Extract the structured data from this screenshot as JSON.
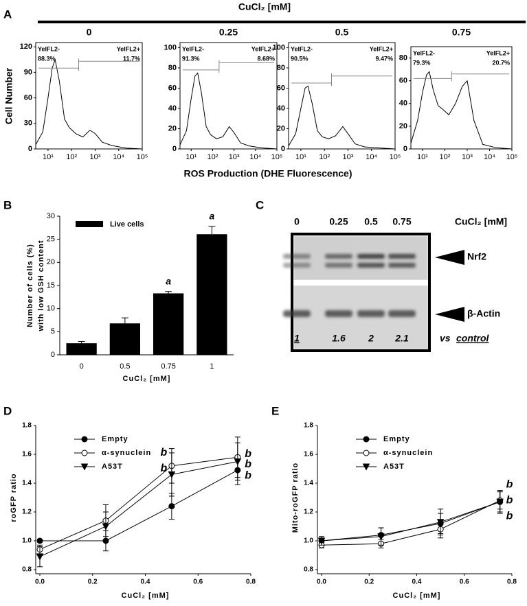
{
  "panel_a": {
    "label": "A",
    "title": "CuCl₂ [mM]",
    "y_label": "Cell Number",
    "x_label": "ROS Production (DHE Fluorescence)",
    "histograms": [
      {
        "type": "line",
        "label": "0",
        "log_x": true,
        "xlim": [
          3,
          100000
        ],
        "xticks": [
          {
            "value": 10,
            "label": "10¹"
          },
          {
            "value": 100,
            "label": "10²"
          },
          {
            "value": 1000,
            "label": "10³"
          },
          {
            "value": 10000,
            "label": "10⁴"
          },
          {
            "value": 100000,
            "label": "10⁵"
          }
        ],
        "ylim": [
          0,
          125
        ],
        "yticks": [
          0,
          30,
          60,
          90,
          120
        ],
        "x": [
          3,
          6,
          10,
          15,
          20,
          30,
          50,
          80,
          150,
          300,
          600,
          1000,
          2000,
          5000,
          20000,
          100000
        ],
        "values": [
          5,
          20,
          60,
          95,
          105,
          80,
          35,
          25,
          18,
          14,
          22,
          18,
          8,
          4,
          1,
          0
        ],
        "gate_x": 200,
        "gate_y": [
          95,
          103
        ],
        "gate_labels": [
          "YelFL2-",
          "88.3%",
          "YelFL2+",
          "11.7%"
        ]
      },
      {
        "type": "line",
        "label": "0.25",
        "log_x": true,
        "xlim": [
          3,
          100000
        ],
        "xticks": [
          {
            "value": 10,
            "label": "10¹"
          },
          {
            "value": 100,
            "label": "10²"
          },
          {
            "value": 1000,
            "label": "10³"
          },
          {
            "value": 10000,
            "label": "10⁴"
          },
          {
            "value": 100000,
            "label": "10⁵"
          }
        ],
        "ylim": [
          0,
          105
        ],
        "yticks": [
          0,
          20,
          40,
          60,
          80,
          100
        ],
        "x": [
          3,
          6,
          10,
          15,
          20,
          30,
          50,
          80,
          150,
          300,
          600,
          1000,
          2000,
          5000,
          20000,
          100000
        ],
        "values": [
          4,
          18,
          50,
          72,
          75,
          55,
          22,
          14,
          10,
          12,
          22,
          16,
          6,
          3,
          1,
          0
        ],
        "gate_x": 200,
        "gate_y": [
          78,
          85
        ],
        "gate_labels": [
          "YelFL2-",
          "91.3%",
          "YelFL2+",
          "8.68%"
        ]
      },
      {
        "type": "line",
        "label": "0.5",
        "log_x": true,
        "xlim": [
          3,
          100000
        ],
        "xticks": [
          {
            "value": 10,
            "label": "10¹"
          },
          {
            "value": 100,
            "label": "10²"
          },
          {
            "value": 1000,
            "label": "10³"
          },
          {
            "value": 10000,
            "label": "10⁴"
          },
          {
            "value": 100000,
            "label": "10⁵"
          }
        ],
        "ylim": [
          0,
          105
        ],
        "yticks": [
          0,
          20,
          40,
          60,
          80,
          100
        ],
        "x": [
          3,
          6,
          10,
          15,
          20,
          30,
          50,
          80,
          150,
          300,
          600,
          1000,
          2000,
          5000,
          20000,
          100000
        ],
        "values": [
          3,
          15,
          40,
          60,
          62,
          45,
          18,
          12,
          10,
          13,
          22,
          15,
          5,
          2,
          1,
          0
        ],
        "gate_x": 200,
        "gate_y": [
          65,
          72
        ],
        "gate_labels": [
          "YelFL2-",
          "90.5%",
          "YelFL2+",
          "9.47%"
        ]
      },
      {
        "type": "line",
        "label": "0.75",
        "log_x": true,
        "xlim": [
          3,
          100000
        ],
        "xticks": [
          {
            "value": 10,
            "label": "10¹"
          },
          {
            "value": 100,
            "label": "10²"
          },
          {
            "value": 1000,
            "label": "10³"
          },
          {
            "value": 10000,
            "label": "10⁴"
          },
          {
            "value": 100000,
            "label": "10⁵"
          }
        ],
        "ylim": [
          0,
          90
        ],
        "yticks": [
          0,
          20,
          40,
          60,
          80
        ],
        "x": [
          3,
          6,
          10,
          15,
          20,
          30,
          50,
          80,
          150,
          300,
          600,
          1000,
          2000,
          5000,
          20000,
          100000
        ],
        "values": [
          5,
          25,
          50,
          65,
          68,
          52,
          38,
          35,
          30,
          40,
          55,
          60,
          25,
          4,
          1,
          0
        ],
        "gate_x": 200,
        "gate_y": [
          62,
          66
        ],
        "gate_labels": [
          "YelFL2-",
          "79.3%",
          "YelFL2+",
          "20.7%"
        ]
      }
    ]
  },
  "panel_b": {
    "label": "B",
    "type": "bar",
    "categories": [
      "0",
      "0.5",
      "0.75",
      "1"
    ],
    "values": [
      2.5,
      6.8,
      13.3,
      26.1
    ],
    "errors": [
      0.4,
      1.2,
      0.4,
      1.7
    ],
    "color": "#000000",
    "ylim": [
      0,
      30
    ],
    "yticks": [
      0,
      5,
      10,
      15,
      20,
      25,
      30
    ],
    "legend": "Live cells",
    "y_label": [
      "Number of cells (%)",
      "with low GSH content"
    ],
    "x_label": "CuCl₂ [mM]",
    "annotations": [
      {
        "index": 2,
        "text": "a"
      },
      {
        "index": 3,
        "text": "a"
      }
    ]
  },
  "panel_c": {
    "label": "C",
    "lanes": [
      "0",
      "0.25",
      "0.5",
      "0.75"
    ],
    "header": "CuCl₂ [mM]",
    "bands": [
      "Nrf2",
      "β-Actin"
    ],
    "quantification": [
      "1",
      "1.6",
      "2",
      "2.1"
    ],
    "reference": [
      "vs",
      "control"
    ]
  },
  "panel_d": {
    "label": "D",
    "type": "line",
    "x": [
      0,
      0.25,
      0.5,
      0.75
    ],
    "xlim": [
      0,
      0.8
    ],
    "xticks": [
      {
        "value": 0,
        "label": "0.0"
      },
      0.2,
      0.4,
      0.6,
      0.8
    ],
    "ylim": [
      0.8,
      1.8
    ],
    "yticks": [
      0.8,
      {
        "value": 1,
        "label": "1.0"
      },
      1.2,
      1.4,
      1.6,
      1.8
    ],
    "y_label": "roGFP ratio",
    "x_label": "CuCl₂ [mM]",
    "legend": "upper left",
    "series": [
      {
        "name": "Empty",
        "color": "#000000",
        "marker": "filled-circle",
        "values": [
          1.0,
          1.0,
          1.24,
          1.49
        ],
        "errors": [
          0.01,
          0.07,
          0.09,
          0.1
        ]
      },
      {
        "name": "α-synuclein",
        "color": "#000000",
        "marker": "open-circle",
        "values": [
          0.94,
          1.14,
          1.52,
          1.58
        ],
        "errors": [
          0.03,
          0.11,
          0.12,
          0.14
        ]
      },
      {
        "name": "A53T",
        "color": "#000000",
        "marker": "triangle-down",
        "values": [
          0.89,
          1.1,
          1.46,
          1.55
        ],
        "errors": [
          0.07,
          0.1,
          0.15,
          0.13
        ]
      }
    ],
    "annotations": [
      {
        "x": 0.47,
        "y": 1.61,
        "text": "b"
      },
      {
        "x": 0.47,
        "y": 1.5,
        "text": "b"
      },
      {
        "x": 0.79,
        "y": 1.6,
        "text": "b"
      },
      {
        "x": 0.79,
        "y": 1.53,
        "text": "b"
      },
      {
        "x": 0.79,
        "y": 1.45,
        "text": "b"
      }
    ]
  },
  "panel_e": {
    "label": "E",
    "type": "line",
    "x": [
      0,
      0.25,
      0.5,
      0.75
    ],
    "xlim": [
      0,
      0.8
    ],
    "xticks": [
      {
        "value": 0,
        "label": "0.0"
      },
      0.2,
      0.4,
      0.6,
      0.8
    ],
    "ylim": [
      0.8,
      1.8
    ],
    "yticks": [
      0.8,
      {
        "value": 1,
        "label": "1.0"
      },
      1.2,
      1.4,
      1.6,
      1.8
    ],
    "y_label": "Mito-roGFP ratio",
    "x_label": "CuCl₂ [mM]",
    "legend": "upper left",
    "series": [
      {
        "name": "Empty",
        "color": "#000000",
        "marker": "filled-circle",
        "values": [
          1.0,
          1.04,
          1.12,
          1.27
        ],
        "errors": [
          0.02,
          0.05,
          0.07,
          0.08
        ]
      },
      {
        "name": "α-synuclein",
        "color": "#000000",
        "marker": "open-circle",
        "values": [
          0.97,
          0.98,
          1.08,
          1.28
        ],
        "errors": [
          0.02,
          0.03,
          0.06,
          0.06
        ]
      },
      {
        "name": "A53T",
        "color": "#000000",
        "marker": "triangle-down",
        "values": [
          1.0,
          1.03,
          1.13,
          1.27
        ],
        "errors": [
          0.03,
          0.06,
          0.09,
          0.07
        ]
      }
    ],
    "annotations": [
      {
        "x": 0.79,
        "y": 1.39,
        "text": "b"
      },
      {
        "x": 0.79,
        "y": 1.28,
        "text": "b"
      },
      {
        "x": 0.79,
        "y": 1.17,
        "text": "b"
      }
    ]
  }
}
